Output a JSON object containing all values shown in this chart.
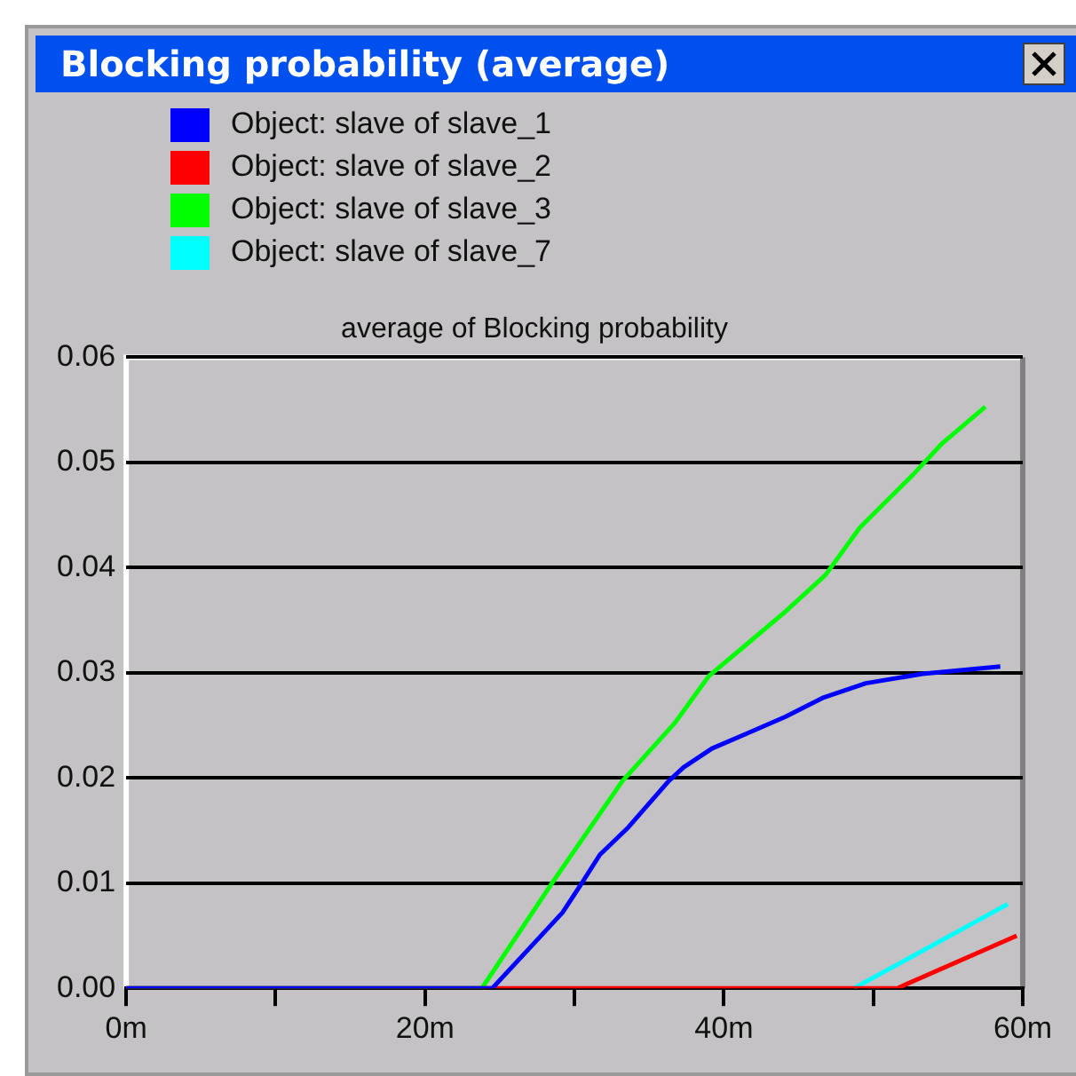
{
  "chart_data": {
    "type": "line",
    "title": "Blocking probability (average)",
    "subtitle": "average of Blocking probability",
    "xlim": [
      0,
      60
    ],
    "xticks": [
      {
        "value": 0,
        "label": "0m"
      },
      {
        "value": 10,
        "label": null
      },
      {
        "value": 20,
        "label": "20m"
      },
      {
        "value": 30,
        "label": null
      },
      {
        "value": 40,
        "label": "40m"
      },
      {
        "value": 50,
        "label": null
      },
      {
        "value": 60,
        "label": "60m"
      }
    ],
    "ylim": [
      0,
      0.06
    ],
    "yticks": [
      {
        "value": 0,
        "label": "0.00"
      },
      {
        "value": 0.01,
        "label": "0.01"
      },
      {
        "value": 0.02,
        "label": "0.02"
      },
      {
        "value": 0.03,
        "label": "0.03"
      },
      {
        "value": 0.04,
        "label": "0.04"
      },
      {
        "value": 0.05,
        "label": "0.05"
      },
      {
        "value": 0.06,
        "label": "0.06"
      }
    ],
    "grid": "y",
    "legend": "top left",
    "marker": "none",
    "line_style": "solid",
    "series": [
      {
        "name": "Object: slave of slave_1",
        "color": "#0000ff",
        "x": [
          0,
          24.5,
          29.2,
          30.4,
          31.7,
          33.6,
          36.3,
          37.3,
          39.2,
          41.5,
          44.1,
          46.6,
          49.5,
          53.3,
          58.5
        ],
        "values": [
          0,
          0,
          0.0072,
          0.0098,
          0.0127,
          0.0153,
          0.0197,
          0.021,
          0.0228,
          0.0242,
          0.0258,
          0.0276,
          0.029,
          0.0299,
          0.0306
        ]
      },
      {
        "name": "Object: slave of slave_2",
        "color": "#ff0000",
        "x": [
          0,
          51.6,
          59.6
        ],
        "values": [
          0,
          0,
          0.005
        ]
      },
      {
        "name": "Object: slave of slave_3",
        "color": "#00ff00",
        "x": [
          0,
          23.8,
          28.5,
          33.2,
          36.7,
          39.0,
          41.1,
          44.1,
          46.8,
          49.1,
          52.7,
          54.6,
          57.5
        ],
        "values": [
          0,
          0,
          0.01,
          0.0197,
          0.0252,
          0.0297,
          0.0322,
          0.0358,
          0.0393,
          0.0438,
          0.0489,
          0.0518,
          0.0553
        ]
      },
      {
        "name": "Object: slave of slave_7",
        "color": "#00ffff",
        "x": [
          48.7,
          59.0
        ],
        "values": [
          0,
          0.008
        ]
      }
    ]
  }
}
